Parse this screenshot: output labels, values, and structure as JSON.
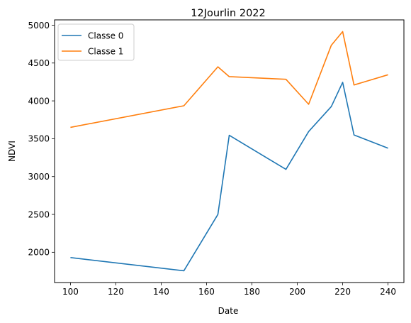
{
  "chart_data": {
    "type": "line",
    "title": "12Jourlin 2022",
    "xlabel": "Date",
    "ylabel": "NDVI",
    "x": [
      100,
      150,
      165,
      170,
      195,
      205,
      215,
      220,
      225,
      240
    ],
    "series": [
      {
        "name": "Classe 0",
        "color": "#1f77b4",
        "values": [
          1930,
          1755,
          2500,
          3545,
          3095,
          3595,
          3925,
          4245,
          3550,
          3375
        ]
      },
      {
        "name": "Classe 1",
        "color": "#ff7f0e",
        "values": [
          3650,
          3935,
          4450,
          4320,
          4285,
          3955,
          4735,
          4915,
          4210,
          4345
        ]
      }
    ],
    "xlim": [
      93,
      247
    ],
    "ylim": [
      1600,
      5070
    ],
    "xticks": [
      100,
      120,
      140,
      160,
      180,
      200,
      220,
      240
    ],
    "yticks": [
      2000,
      2500,
      3000,
      3500,
      4000,
      4500,
      5000
    ],
    "legend": "top-left",
    "grid": false
  }
}
